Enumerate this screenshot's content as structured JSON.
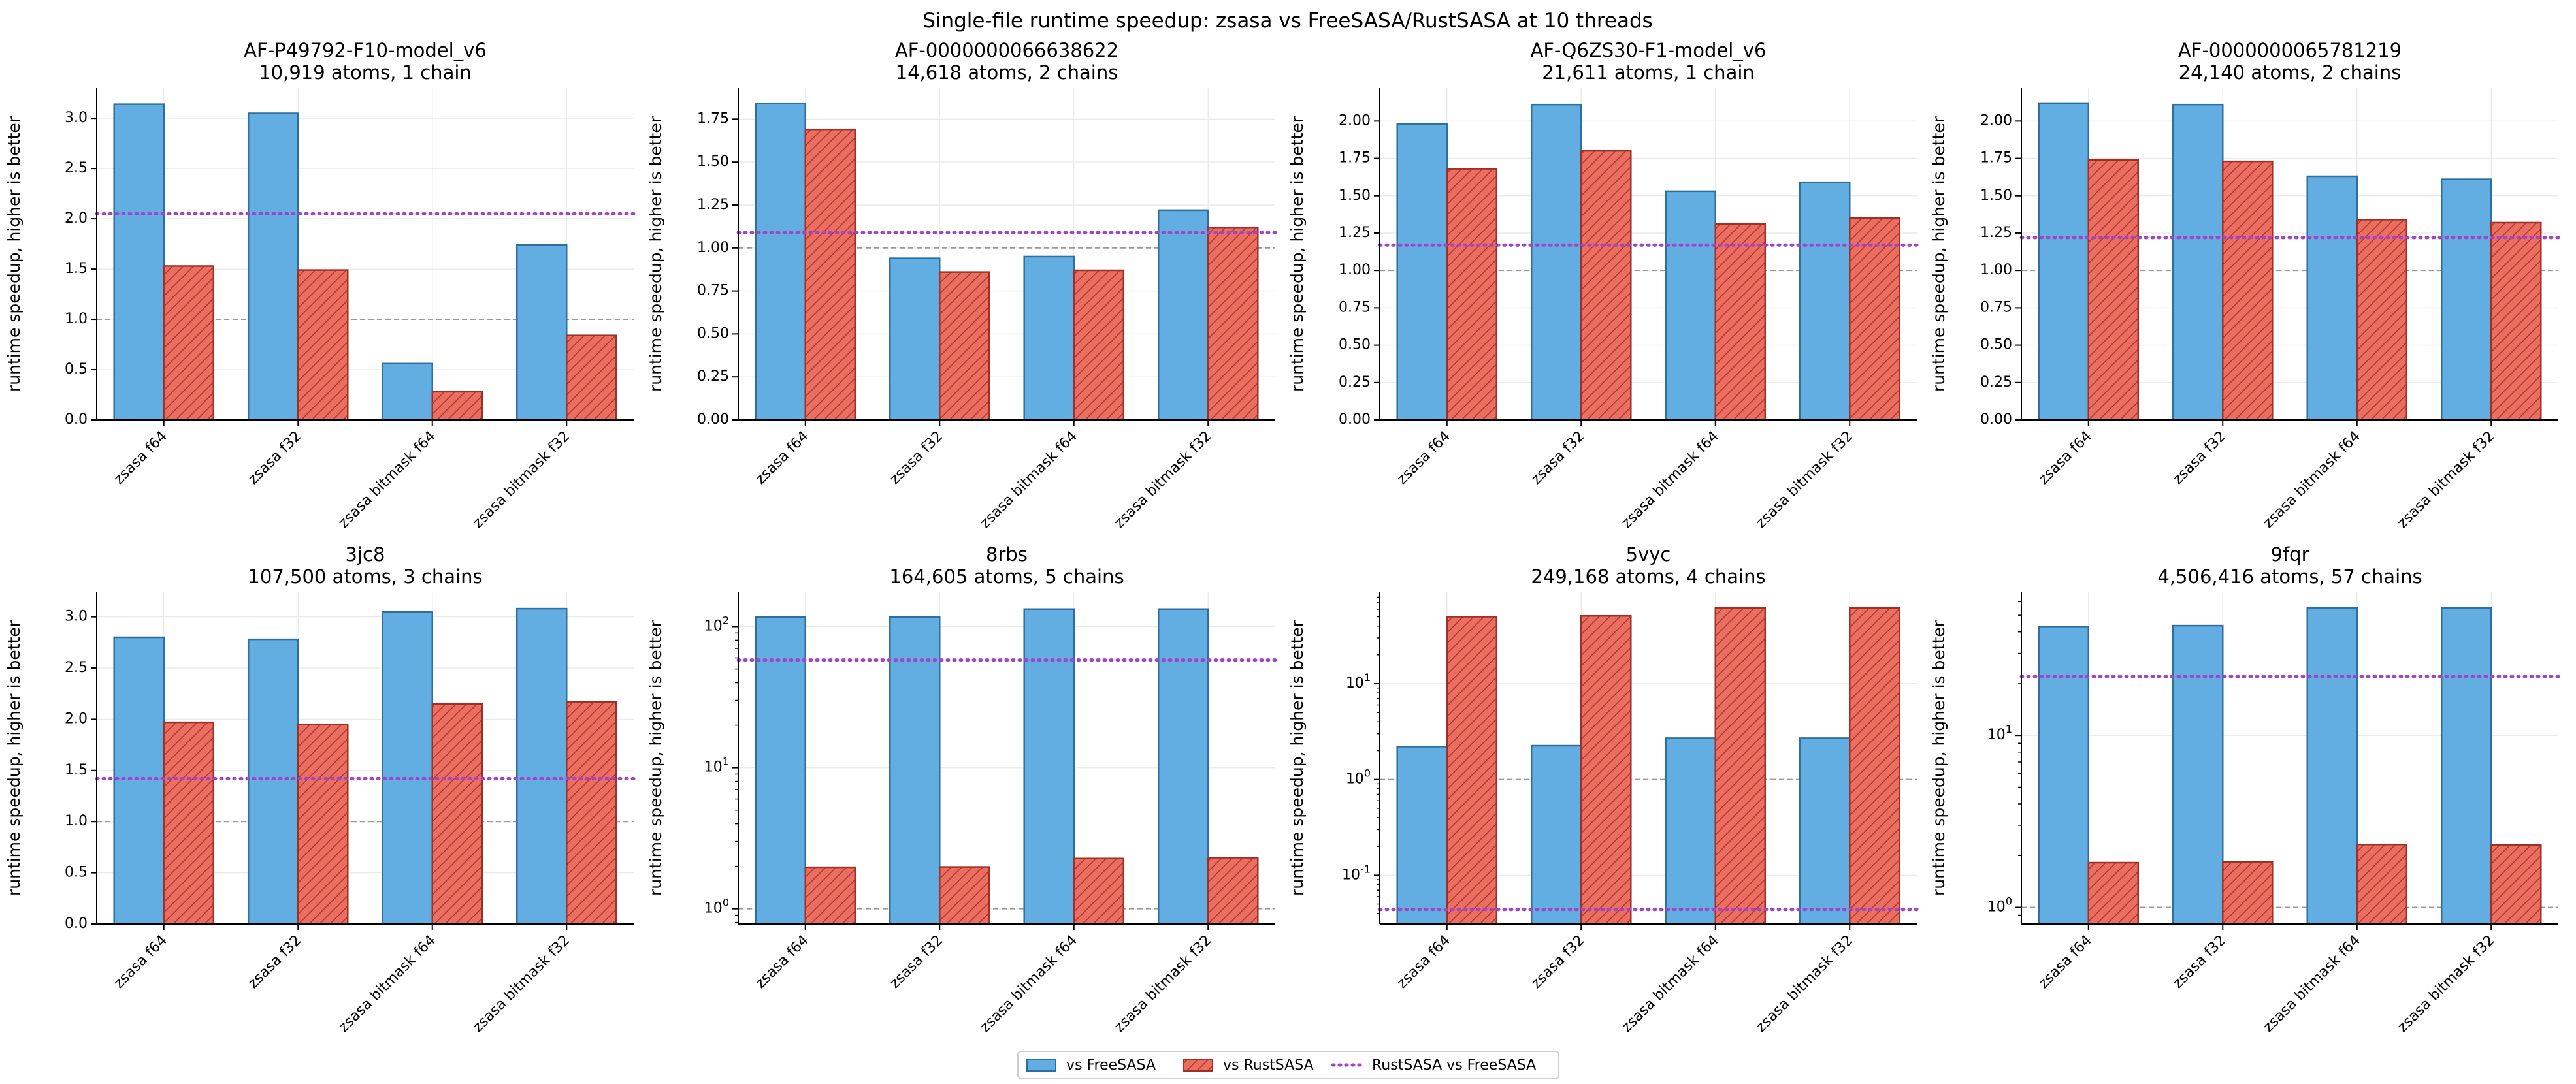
{
  "figure": {
    "suptitle": "Single-file runtime speedup: zsasa vs FreeSASA/RustSASA at 10 threads",
    "colors": {
      "freesasa": "#62aee3",
      "freesasa_edge": "#2e6f9e",
      "rustsasa": "#ec6e61",
      "rustsasa_edge": "#9c3128",
      "reference_line": "#a245c4",
      "baseline": "#9a9a9a",
      "grid": "#ebebeb"
    }
  },
  "legend": {
    "items": [
      {
        "label": "vs FreeSASA",
        "kind": "bar",
        "color": "#62aee3"
      },
      {
        "label": "vs RustSASA",
        "kind": "hatched",
        "color": "#ec6e61"
      },
      {
        "label": "RustSASA vs FreeSASA",
        "kind": "dotted",
        "color": "#a245c4"
      }
    ]
  },
  "chart_data": [
    {
      "type": "bar",
      "title": "AF-P49792-F10-model_v6",
      "subtitle": "10,919 atoms, 1 chain",
      "ylabel": "runtime speedup, higher is better",
      "yscale": "linear",
      "ylim": [
        0,
        3.3
      ],
      "yticks": [
        0.0,
        0.5,
        1.0,
        1.5,
        2.0,
        2.5,
        3.0
      ],
      "ytick_labels": [
        "0.0",
        "0.5",
        "1.0",
        "1.5",
        "2.0",
        "2.5",
        "3.0"
      ],
      "categories": [
        "zsasa f64",
        "zsasa f32",
        "zsasa bitmask f64",
        "zsasa bitmask f32"
      ],
      "series": [
        {
          "name": "vs FreeSASA",
          "values": [
            3.14,
            3.05,
            0.56,
            1.74
          ]
        },
        {
          "name": "vs RustSASA",
          "values": [
            1.53,
            1.49,
            0.28,
            0.84
          ]
        }
      ],
      "reference_line": 2.05,
      "baseline": 1.0
    },
    {
      "type": "bar",
      "title": "AF-0000000066638622",
      "subtitle": "14,618 atoms, 2 chains",
      "ylabel": "runtime speedup, higher is better",
      "yscale": "linear",
      "ylim": [
        0,
        1.93
      ],
      "yticks": [
        0.0,
        0.25,
        0.5,
        0.75,
        1.0,
        1.25,
        1.5,
        1.75
      ],
      "ytick_labels": [
        "0.00",
        "0.25",
        "0.50",
        "0.75",
        "1.00",
        "1.25",
        "1.50",
        "1.75"
      ],
      "categories": [
        "zsasa f64",
        "zsasa f32",
        "zsasa bitmask f64",
        "zsasa bitmask f32"
      ],
      "series": [
        {
          "name": "vs FreeSASA",
          "values": [
            1.84,
            0.94,
            0.95,
            1.22
          ]
        },
        {
          "name": "vs RustSASA",
          "values": [
            1.69,
            0.86,
            0.87,
            1.12
          ]
        }
      ],
      "reference_line": 1.09,
      "baseline": 1.0
    },
    {
      "type": "bar",
      "title": "AF-Q6ZS30-F1-model_v6",
      "subtitle": "21,611 atoms, 1 chain",
      "ylabel": "runtime speedup, higher is better",
      "yscale": "linear",
      "ylim": [
        0,
        2.22
      ],
      "yticks": [
        0.0,
        0.25,
        0.5,
        0.75,
        1.0,
        1.25,
        1.5,
        1.75,
        2.0
      ],
      "ytick_labels": [
        "0.00",
        "0.25",
        "0.50",
        "0.75",
        "1.00",
        "1.25",
        "1.50",
        "1.75",
        "2.00"
      ],
      "categories": [
        "zsasa f64",
        "zsasa f32",
        "zsasa bitmask f64",
        "zsasa bitmask f32"
      ],
      "series": [
        {
          "name": "vs FreeSASA",
          "values": [
            1.98,
            2.11,
            1.53,
            1.59
          ]
        },
        {
          "name": "vs RustSASA",
          "values": [
            1.68,
            1.8,
            1.31,
            1.35
          ]
        }
      ],
      "reference_line": 1.17,
      "baseline": 1.0
    },
    {
      "type": "bar",
      "title": "AF-0000000065781219",
      "subtitle": "24,140 atoms, 2 chains",
      "ylabel": "runtime speedup, higher is better",
      "yscale": "linear",
      "ylim": [
        0,
        2.22
      ],
      "yticks": [
        0.0,
        0.25,
        0.5,
        0.75,
        1.0,
        1.25,
        1.5,
        1.75,
        2.0
      ],
      "ytick_labels": [
        "0.00",
        "0.25",
        "0.50",
        "0.75",
        "1.00",
        "1.25",
        "1.50",
        "1.75",
        "2.00"
      ],
      "categories": [
        "zsasa f64",
        "zsasa f32",
        "zsasa bitmask f64",
        "zsasa bitmask f32"
      ],
      "series": [
        {
          "name": "vs FreeSASA",
          "values": [
            2.12,
            2.11,
            1.63,
            1.61
          ]
        },
        {
          "name": "vs RustSASA",
          "values": [
            1.74,
            1.73,
            1.34,
            1.32
          ]
        }
      ],
      "reference_line": 1.22,
      "baseline": 1.0
    },
    {
      "type": "bar",
      "title": "3jc8",
      "subtitle": "107,500 atoms, 3 chains",
      "ylabel": "runtime speedup, higher is better",
      "yscale": "linear",
      "ylim": [
        0,
        3.24
      ],
      "yticks": [
        0.0,
        0.5,
        1.0,
        1.5,
        2.0,
        2.5,
        3.0
      ],
      "ytick_labels": [
        "0.0",
        "0.5",
        "1.0",
        "1.5",
        "2.0",
        "2.5",
        "3.0"
      ],
      "categories": [
        "zsasa f64",
        "zsasa f32",
        "zsasa bitmask f64",
        "zsasa bitmask f32"
      ],
      "series": [
        {
          "name": "vs FreeSASA",
          "values": [
            2.8,
            2.78,
            3.05,
            3.08
          ]
        },
        {
          "name": "vs RustSASA",
          "values": [
            1.97,
            1.95,
            2.15,
            2.17
          ]
        }
      ],
      "reference_line": 1.42,
      "baseline": 1.0
    },
    {
      "type": "bar",
      "title": "8rbs",
      "subtitle": "164,605 atoms, 5 chains",
      "ylabel": "runtime speedup, higher is better",
      "yscale": "log",
      "ylim": [
        0.78,
        175
      ],
      "yticks": [
        1,
        10,
        100
      ],
      "ytick_labels": [
        "10^0",
        "10^1",
        "10^2"
      ],
      "categories": [
        "zsasa f64",
        "zsasa f32",
        "zsasa bitmask f64",
        "zsasa bitmask f32"
      ],
      "series": [
        {
          "name": "vs FreeSASA",
          "values": [
            117,
            117,
            133,
            133
          ]
        },
        {
          "name": "vs RustSASA",
          "values": [
            1.97,
            1.98,
            2.27,
            2.3
          ]
        }
      ],
      "reference_line": 58,
      "baseline": 1.0
    },
    {
      "type": "bar",
      "title": "5vyc",
      "subtitle": "249,168 atoms, 4 chains",
      "ylabel": "runtime speedup, higher is better",
      "yscale": "log",
      "ylim": [
        0.031,
        90
      ],
      "yticks": [
        0.1,
        1,
        10
      ],
      "ytick_labels": [
        "10^-1",
        "10^0",
        "10^1"
      ],
      "categories": [
        "zsasa f64",
        "zsasa f32",
        "zsasa bitmask f64",
        "zsasa bitmask f32"
      ],
      "series": [
        {
          "name": "vs FreeSASA",
          "values": [
            2.2,
            2.25,
            2.7,
            2.7
          ]
        },
        {
          "name": "vs RustSASA",
          "values": [
            50,
            51,
            62,
            62
          ]
        }
      ],
      "reference_line": 0.044,
      "baseline": 1.0
    },
    {
      "type": "bar",
      "title": "9fqr",
      "subtitle": "4,506,416 atoms, 57 chains",
      "ylabel": "runtime speedup, higher is better",
      "yscale": "log",
      "ylim": [
        0.8,
        68
      ],
      "yticks": [
        1,
        10
      ],
      "ytick_labels": [
        "10^0",
        "10^1"
      ],
      "categories": [
        "zsasa f64",
        "zsasa f32",
        "zsasa bitmask f64",
        "zsasa bitmask f32"
      ],
      "series": [
        {
          "name": "vs FreeSASA",
          "values": [
            43,
            43.5,
            55,
            55
          ]
        },
        {
          "name": "vs RustSASA",
          "values": [
            1.82,
            1.84,
            2.32,
            2.3
          ]
        }
      ],
      "reference_line": 22,
      "baseline": 1.0
    }
  ]
}
